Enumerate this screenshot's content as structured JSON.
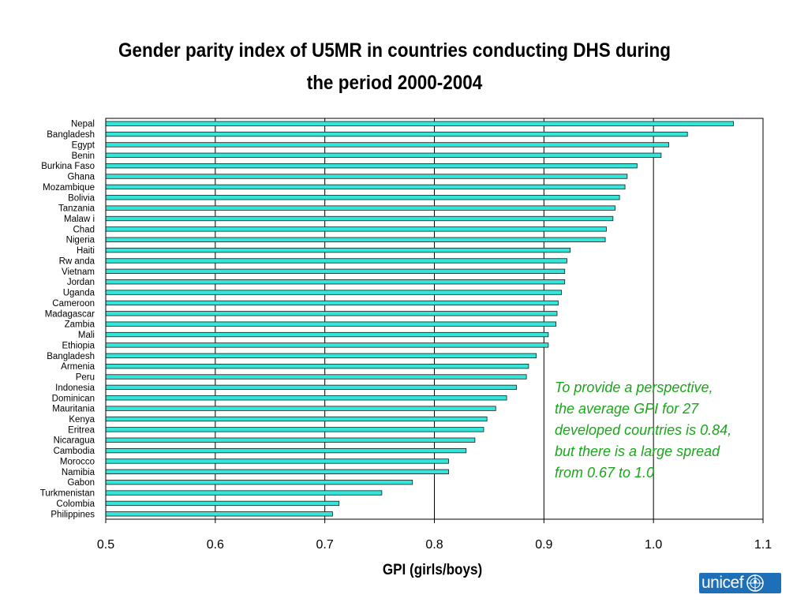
{
  "colors": {
    "bar_fill": "#33e6d9",
    "bar_stroke": "#1a1a1a",
    "annotation_text": "#1aa61a",
    "logo_bg": "#1d6fb8"
  },
  "annotation": {
    "lines": [
      "To provide a perspective,",
      "the average GPI for 27",
      "developed countries is 0.84,",
      "but there is a large spread",
      "from 0.67 to 1.0"
    ]
  },
  "logo": {
    "text": "unicef",
    "icon": "unicef-emblem-icon"
  },
  "chart_data": {
    "type": "bar",
    "orientation": "horizontal",
    "title": "Gender parity index of U5MR in countries conducting DHS during the period 2000-2004",
    "title_lines": [
      "Gender parity index of U5MR in countries conducting DHS during",
      "the period 2000-2004"
    ],
    "xlabel": "GPI (girls/boys)",
    "ylabel": "",
    "xlim": [
      0.5,
      1.1
    ],
    "xticks": [
      0.5,
      0.6,
      0.7,
      0.8,
      0.9,
      1.0,
      1.1
    ],
    "xtick_labels": [
      "0.5",
      "0.6",
      "0.7",
      "0.8",
      "0.9",
      "1.0",
      "1.1"
    ],
    "grid": "vertical major gridlines",
    "legend": "none",
    "categories": [
      "Nepal",
      "Bangladesh",
      "Egypt",
      "Benin",
      "Burkina Faso",
      "Ghana",
      "Mozambique",
      "Bolivia",
      "Tanzania",
      "Malaw i",
      "Chad",
      "Nigeria",
      "Haiti",
      "Rw anda",
      "Vietnam",
      "Jordan",
      "Uganda",
      "Cameroon",
      "Madagascar",
      "Zambia",
      "Mali",
      "Ethiopia",
      "Bangladesh",
      "Armenia",
      "Peru",
      "Indonesia",
      "Dominican",
      "Mauritania",
      "Kenya",
      "Eritrea",
      "Nicaragua",
      "Cambodia",
      "Morocco",
      "Namibia",
      "Gabon",
      "Turkmenistan",
      "Colombia",
      "Philippines"
    ],
    "values": [
      1.073,
      1.031,
      1.014,
      1.007,
      0.985,
      0.976,
      0.974,
      0.969,
      0.965,
      0.963,
      0.957,
      0.956,
      0.924,
      0.921,
      0.919,
      0.919,
      0.916,
      0.913,
      0.912,
      0.911,
      0.904,
      0.904,
      0.893,
      0.886,
      0.884,
      0.875,
      0.866,
      0.856,
      0.848,
      0.845,
      0.837,
      0.829,
      0.813,
      0.813,
      0.78,
      0.752,
      0.713,
      0.707
    ]
  }
}
